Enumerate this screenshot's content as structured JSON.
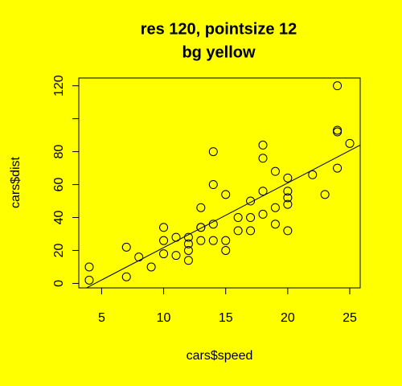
{
  "chart_data": {
    "type": "scatter",
    "title": "res 120, pointsize 12",
    "subtitle": "bg yellow",
    "x_label": "cars$speed",
    "y_label": "cars$dist",
    "background": "#ffff00",
    "color": "#000000",
    "x": [
      4,
      4,
      7,
      7,
      8,
      9,
      10,
      10,
      10,
      11,
      11,
      12,
      12,
      12,
      12,
      13,
      13,
      13,
      13,
      14,
      14,
      14,
      14,
      15,
      15,
      15,
      16,
      16,
      17,
      17,
      17,
      18,
      18,
      18,
      18,
      19,
      19,
      19,
      20,
      20,
      20,
      20,
      20,
      22,
      23,
      24,
      24,
      24,
      24,
      25
    ],
    "values": [
      2,
      10,
      4,
      22,
      16,
      10,
      18,
      26,
      34,
      17,
      28,
      14,
      20,
      24,
      28,
      26,
      34,
      34,
      46,
      26,
      36,
      60,
      80,
      20,
      26,
      54,
      32,
      40,
      32,
      40,
      50,
      42,
      56,
      76,
      84,
      36,
      46,
      68,
      32,
      48,
      52,
      56,
      64,
      66,
      54,
      70,
      92,
      93,
      120,
      85
    ],
    "fit": {
      "intercept": -17.58,
      "slope": 3.93
    },
    "xlim": [
      3.16,
      25.84
    ],
    "ylim": [
      -2.72,
      124.72
    ],
    "xticks": [
      5,
      10,
      15,
      20,
      25
    ],
    "yticks": [
      0,
      20,
      40,
      60,
      80,
      {
        "value": 100,
        "label": null
      },
      120
    ]
  }
}
